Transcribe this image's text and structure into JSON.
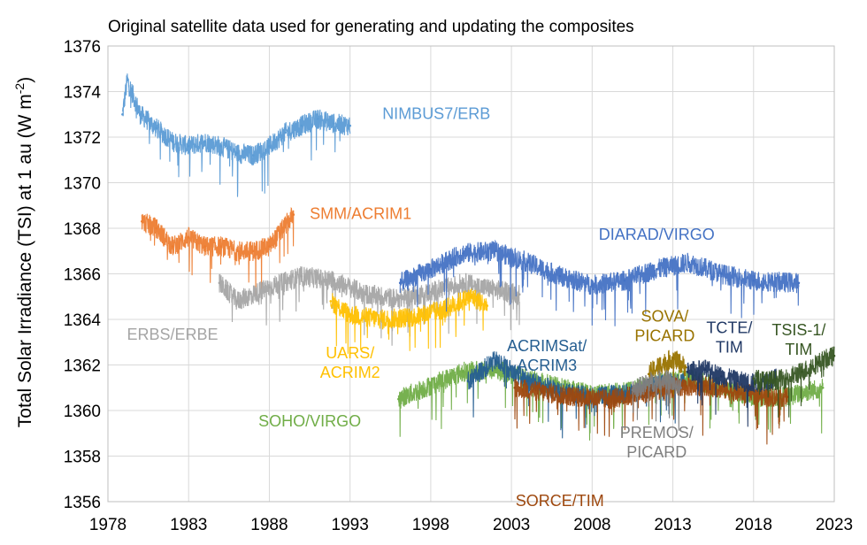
{
  "chart_data": {
    "type": "line",
    "title": "Original satellite data used for generating and updating the composites",
    "ylabel": "Total Solar Irradiance (TSI) at 1 au (W m-2)",
    "ylabel_main": "Total Solar Irradiance (TSI) at 1 au (W m",
    "ylabel_exp": "-2",
    "ylabel_tail": ")",
    "xlabel": "",
    "xlim": [
      1978,
      2023
    ],
    "ylim": [
      1356,
      1376
    ],
    "x_ticks": [
      "1978",
      "1983",
      "1988",
      "1993",
      "1998",
      "2003",
      "2008",
      "2013",
      "2018",
      "2023"
    ],
    "y_ticks": [
      "1356",
      "1358",
      "1360",
      "1362",
      "1364",
      "1366",
      "1368",
      "1370",
      "1372",
      "1374",
      "1376"
    ],
    "grid": true,
    "legend": "none",
    "series": [
      {
        "name": "NIMBUS7/ERB",
        "color": "#5b9bd5",
        "x": [
          1978.9,
          1979.2,
          1980,
          1981,
          1982,
          1983,
          1984,
          1985,
          1986,
          1987,
          1988,
          1989,
          1990,
          1991,
          1992,
          1993
        ],
        "y": [
          1373.0,
          1374.5,
          1373.0,
          1372.4,
          1371.8,
          1371.6,
          1371.8,
          1371.6,
          1371.3,
          1371.2,
          1371.6,
          1372.2,
          1372.5,
          1372.8,
          1372.6,
          1372.5
        ],
        "label_lines": [
          "NIMBUS7/ERB"
        ],
        "label_x": 1995.0,
        "label_y": 1372.8,
        "label_anchor": "start"
      },
      {
        "name": "SMM/ACRIM1",
        "color": "#ed7d31",
        "x": [
          1980.1,
          1981,
          1982,
          1983,
          1984,
          1985,
          1986,
          1987,
          1988,
          1989.5
        ],
        "y": [
          1368.3,
          1368.0,
          1367.2,
          1367.6,
          1367.2,
          1367.2,
          1367.0,
          1367.0,
          1367.2,
          1368.6
        ],
        "label_lines": [
          "SMM/ACRIM1"
        ],
        "label_x": 1990.5,
        "label_y": 1368.4,
        "label_anchor": "start"
      },
      {
        "name": "ERBS/ERBE",
        "color": "#a5a5a5",
        "x": [
          1984.9,
          1986,
          1988,
          1990,
          1992,
          1994,
          1996,
          1998,
          2000,
          2002,
          2003.5
        ],
        "y": [
          1365.6,
          1364.8,
          1365.4,
          1365.9,
          1365.7,
          1365.1,
          1364.9,
          1365.2,
          1365.6,
          1365.3,
          1365.1
        ],
        "label_lines": [
          "ERBS/ERBE"
        ],
        "label_x": 1982.0,
        "label_y": 1363.1,
        "label_anchor": "middle"
      },
      {
        "name": "UARS/ACRIM2",
        "color": "#ffc000",
        "x": [
          1991.8,
          1993,
          1995,
          1997,
          1999,
          2000.5,
          2001.5
        ],
        "y": [
          1364.8,
          1364.2,
          1364.0,
          1364.1,
          1364.5,
          1365.0,
          1364.6
        ],
        "label_lines": [
          "UARS/",
          "ACRIM2"
        ],
        "label_x": 1993.0,
        "label_y": 1362.3,
        "label_anchor": "middle"
      },
      {
        "name": "DIARAD/VIRGO",
        "color": "#4472c4",
        "x": [
          1996.1,
          1998,
          2000,
          2002,
          2004,
          2006,
          2008,
          2010,
          2012,
          2014,
          2016,
          2018,
          2020.8
        ],
        "y": [
          1365.6,
          1366.2,
          1366.9,
          1367.0,
          1366.5,
          1365.9,
          1365.5,
          1365.7,
          1366.2,
          1366.5,
          1366.0,
          1365.7,
          1365.6
        ],
        "label_lines": [
          "DIARAD/VIRGO"
        ],
        "label_x": 2012.0,
        "label_y": 1367.5,
        "label_anchor": "middle"
      },
      {
        "name": "SOHO/VIRGO",
        "color": "#70ad47",
        "x": [
          1996.0,
          1998,
          2000,
          2002,
          2004,
          2006,
          2008,
          2010,
          2012,
          2014,
          2016,
          2018,
          2020,
          2022.3
        ],
        "y": [
          1360.5,
          1361.1,
          1361.7,
          1361.8,
          1361.4,
          1361.0,
          1360.7,
          1360.8,
          1361.2,
          1361.4,
          1361.0,
          1360.6,
          1360.6,
          1361.0
        ],
        "label_lines": [
          "SOHO/VIRGO"
        ],
        "label_x": 1990.5,
        "label_y": 1359.3,
        "label_anchor": "middle"
      },
      {
        "name": "ACRIMSat/ACRIM3",
        "color": "#255e91",
        "x": [
          2000.3,
          2002,
          2004,
          2006,
          2008,
          2010,
          2012,
          2013.7
        ],
        "y": [
          1361.3,
          1362.2,
          1361.3,
          1360.8,
          1360.6,
          1360.7,
          1361.1,
          1361.3
        ],
        "label_lines": [
          "ACRIMSat/",
          "ACRIM3"
        ],
        "label_x": 2005.2,
        "label_y": 1362.6,
        "label_anchor": "middle"
      },
      {
        "name": "SORCE/TIM",
        "color": "#9e480e",
        "x": [
          2003.2,
          2005,
          2007,
          2009,
          2011,
          2013,
          2015,
          2017,
          2019,
          2020.1
        ],
        "y": [
          1361.0,
          1360.8,
          1360.6,
          1360.5,
          1360.7,
          1361.0,
          1361.1,
          1360.8,
          1360.6,
          1360.6
        ],
        "label_lines": [
          "SORCE/TIM"
        ],
        "label_x": 2006.0,
        "label_y": 1355.8,
        "label_anchor": "middle"
      },
      {
        "name": "SOVA/PICARD",
        "color": "#997300",
        "x": [
          2011.5,
          2012.2,
          2013,
          2013.8
        ],
        "y": [
          1361.6,
          1362.0,
          1362.3,
          1361.9
        ],
        "label_lines": [
          "SOVA/",
          "PICARD"
        ],
        "label_x": 2012.5,
        "label_y": 1363.9,
        "label_anchor": "middle"
      },
      {
        "name": "PREMOS/PICARD",
        "color": "#7f7f7f",
        "x": [
          2010.5,
          2011.5,
          2012.5,
          2013.5
        ],
        "y": [
          1360.9,
          1361.2,
          1361.4,
          1361.0
        ],
        "label_lines": [
          "PREMOS/",
          "PICARD"
        ],
        "label_x": 2012.0,
        "label_y": 1358.8,
        "label_anchor": "middle"
      },
      {
        "name": "TCTE/TIM",
        "color": "#203864",
        "x": [
          2013.9,
          2015,
          2016,
          2017,
          2018,
          2019.4
        ],
        "y": [
          1361.7,
          1361.8,
          1361.5,
          1361.3,
          1361.2,
          1361.4
        ],
        "label_lines": [
          "TCTE/",
          "TIM"
        ],
        "label_x": 2016.5,
        "label_y": 1363.4,
        "label_anchor": "middle"
      },
      {
        "name": "TSIS-1/TIM",
        "color": "#375623",
        "x": [
          2018.0,
          2019,
          2020,
          2021,
          2022,
          2023
        ],
        "y": [
          1361.4,
          1361.3,
          1361.4,
          1361.7,
          1362.1,
          1362.4
        ],
        "label_lines": [
          "TSIS-1/",
          "TIM"
        ],
        "label_x": 2020.8,
        "label_y": 1363.3,
        "label_anchor": "middle"
      }
    ]
  }
}
